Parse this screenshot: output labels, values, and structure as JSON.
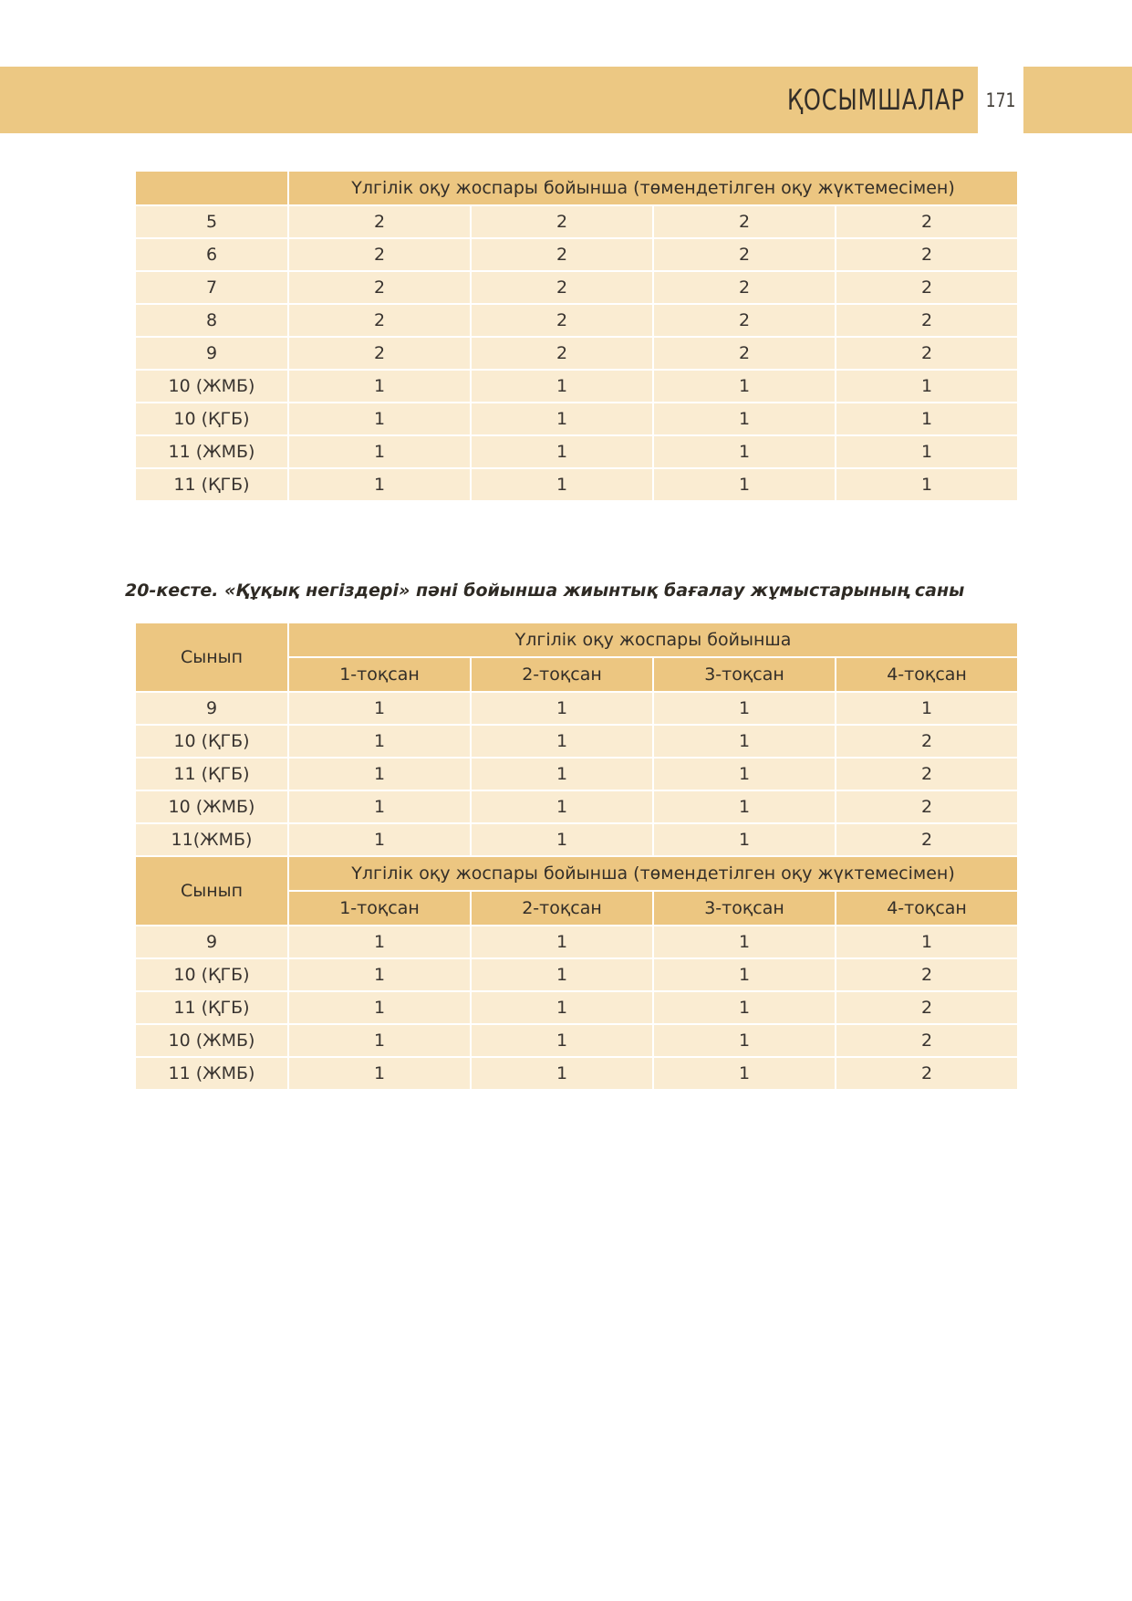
{
  "header": {
    "title": "ҚОСЫМШАЛАР",
    "page_number": "171"
  },
  "table1": {
    "header": "Үлгілік оқу жоспары бойынша (төмендетілген оқу жүктемесімен)",
    "rows": [
      {
        "label": "5",
        "values": [
          "2",
          "2",
          "2",
          "2"
        ]
      },
      {
        "label": "6",
        "values": [
          "2",
          "2",
          "2",
          "2"
        ]
      },
      {
        "label": "7",
        "values": [
          "2",
          "2",
          "2",
          "2"
        ]
      },
      {
        "label": "8",
        "values": [
          "2",
          "2",
          "2",
          "2"
        ]
      },
      {
        "label": "9",
        "values": [
          "2",
          "2",
          "2",
          "2"
        ]
      },
      {
        "label": "10 (ЖМБ)",
        "values": [
          "1",
          "1",
          "1",
          "1"
        ]
      },
      {
        "label": "10 (ҚГБ)",
        "values": [
          "1",
          "1",
          "1",
          "1"
        ]
      },
      {
        "label": "11 (ЖМБ)",
        "values": [
          "1",
          "1",
          "1",
          "1"
        ]
      },
      {
        "label": "11 (ҚГБ)",
        "values": [
          "1",
          "1",
          "1",
          "1"
        ]
      }
    ]
  },
  "caption": "20-кесте. «Құқық негіздері» пәні бойынша жиынтық бағалау жұмыстарының саны",
  "table2": {
    "sections": [
      {
        "class_label": "Сынып",
        "title": "Үлгілік оқу жоспары бойынша",
        "quarters": [
          "1-тоқсан",
          "2-тоқсан",
          "3-тоқсан",
          "4-тоқсан"
        ],
        "rows": [
          {
            "label": "9",
            "values": [
              "1",
              "1",
              "1",
              "1"
            ]
          },
          {
            "label": "10 (ҚГБ)",
            "values": [
              "1",
              "1",
              "1",
              "2"
            ]
          },
          {
            "label": "11 (ҚГБ)",
            "values": [
              "1",
              "1",
              "1",
              "2"
            ]
          },
          {
            "label": "10 (ЖМБ)",
            "values": [
              "1",
              "1",
              "1",
              "2"
            ]
          },
          {
            "label": "11(ЖМБ)",
            "values": [
              "1",
              "1",
              "1",
              "2"
            ]
          }
        ]
      },
      {
        "class_label": "Сынып",
        "title": "Үлгілік оқу жоспары бойынша (төмендетілген оқу жүктемесімен)",
        "quarters": [
          "1-тоқсан",
          "2-тоқсан",
          "3-тоқсан",
          "4-тоқсан"
        ],
        "rows": [
          {
            "label": "9",
            "values": [
              "1",
              "1",
              "1",
              "1"
            ]
          },
          {
            "label": "10 (ҚГБ)",
            "values": [
              "1",
              "1",
              "1",
              "2"
            ]
          },
          {
            "label": "11 (ҚГБ)",
            "values": [
              "1",
              "1",
              "1",
              "2"
            ]
          },
          {
            "label": "10 (ЖМБ)",
            "values": [
              "1",
              "1",
              "1",
              "2"
            ]
          },
          {
            "label": "11 (ЖМБ)",
            "values": [
              "1",
              "1",
              "1",
              "2"
            ]
          }
        ]
      }
    ]
  },
  "colors": {
    "band": "#ecc883",
    "table_header": "#ecc681",
    "table_cell": "#faecd2",
    "text": "#38332d"
  }
}
